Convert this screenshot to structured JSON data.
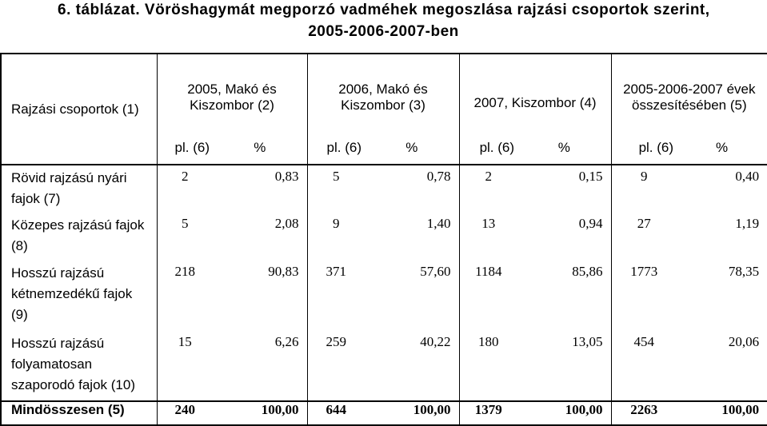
{
  "title": {
    "line1": "6. táblázat. Vöröshagymát megporzó vadméhek megoszlása rajzási csoportok szerint,",
    "line2": "2005-2006-2007-ben"
  },
  "header": {
    "row_label": "Rajzási csoportok (1)",
    "columns": [
      {
        "line1": "2005, Makó és",
        "line2": "Kiszombor (2)"
      },
      {
        "line1": "2006, Makó és",
        "line2": "Kiszombor (3)"
      },
      {
        "line1": "2007, Kiszombor (4)",
        "line2": ""
      },
      {
        "line1": "2005-2006-2007 évek",
        "line2": "összesítésében (5)"
      }
    ],
    "unit_count": "pl. (6)",
    "unit_percent": "%"
  },
  "rows": [
    {
      "label_lines": [
        "Rövid rajzású nyári",
        "fajok (7)"
      ],
      "values": [
        "2",
        "0,83",
        "5",
        "0,78",
        "2",
        "0,15",
        "9",
        "0,40"
      ]
    },
    {
      "label_lines": [
        "Közepes rajzású fajok",
        "(8)"
      ],
      "values": [
        "5",
        "2,08",
        "9",
        "1,40",
        "13",
        "0,94",
        "27",
        "1,19"
      ]
    },
    {
      "label_lines": [
        "Hosszú rajzású",
        "kétnemzedékű fajok",
        "(9)"
      ],
      "values": [
        "218",
        "90,83",
        "371",
        "57,60",
        "1184",
        "85,86",
        "1773",
        "78,35"
      ]
    },
    {
      "label_lines": [
        "Hosszú rajzású",
        "folyamatosan",
        "szaporodó fajok (10)"
      ],
      "values": [
        "15",
        "6,26",
        "259",
        "40,22",
        "180",
        "13,05",
        "454",
        "20,06"
      ]
    }
  ],
  "total": {
    "label": "Mindösszesen (5)",
    "values": [
      "240",
      "100,00",
      "644",
      "100,00",
      "1379",
      "100,00",
      "2263",
      "100,00"
    ]
  }
}
